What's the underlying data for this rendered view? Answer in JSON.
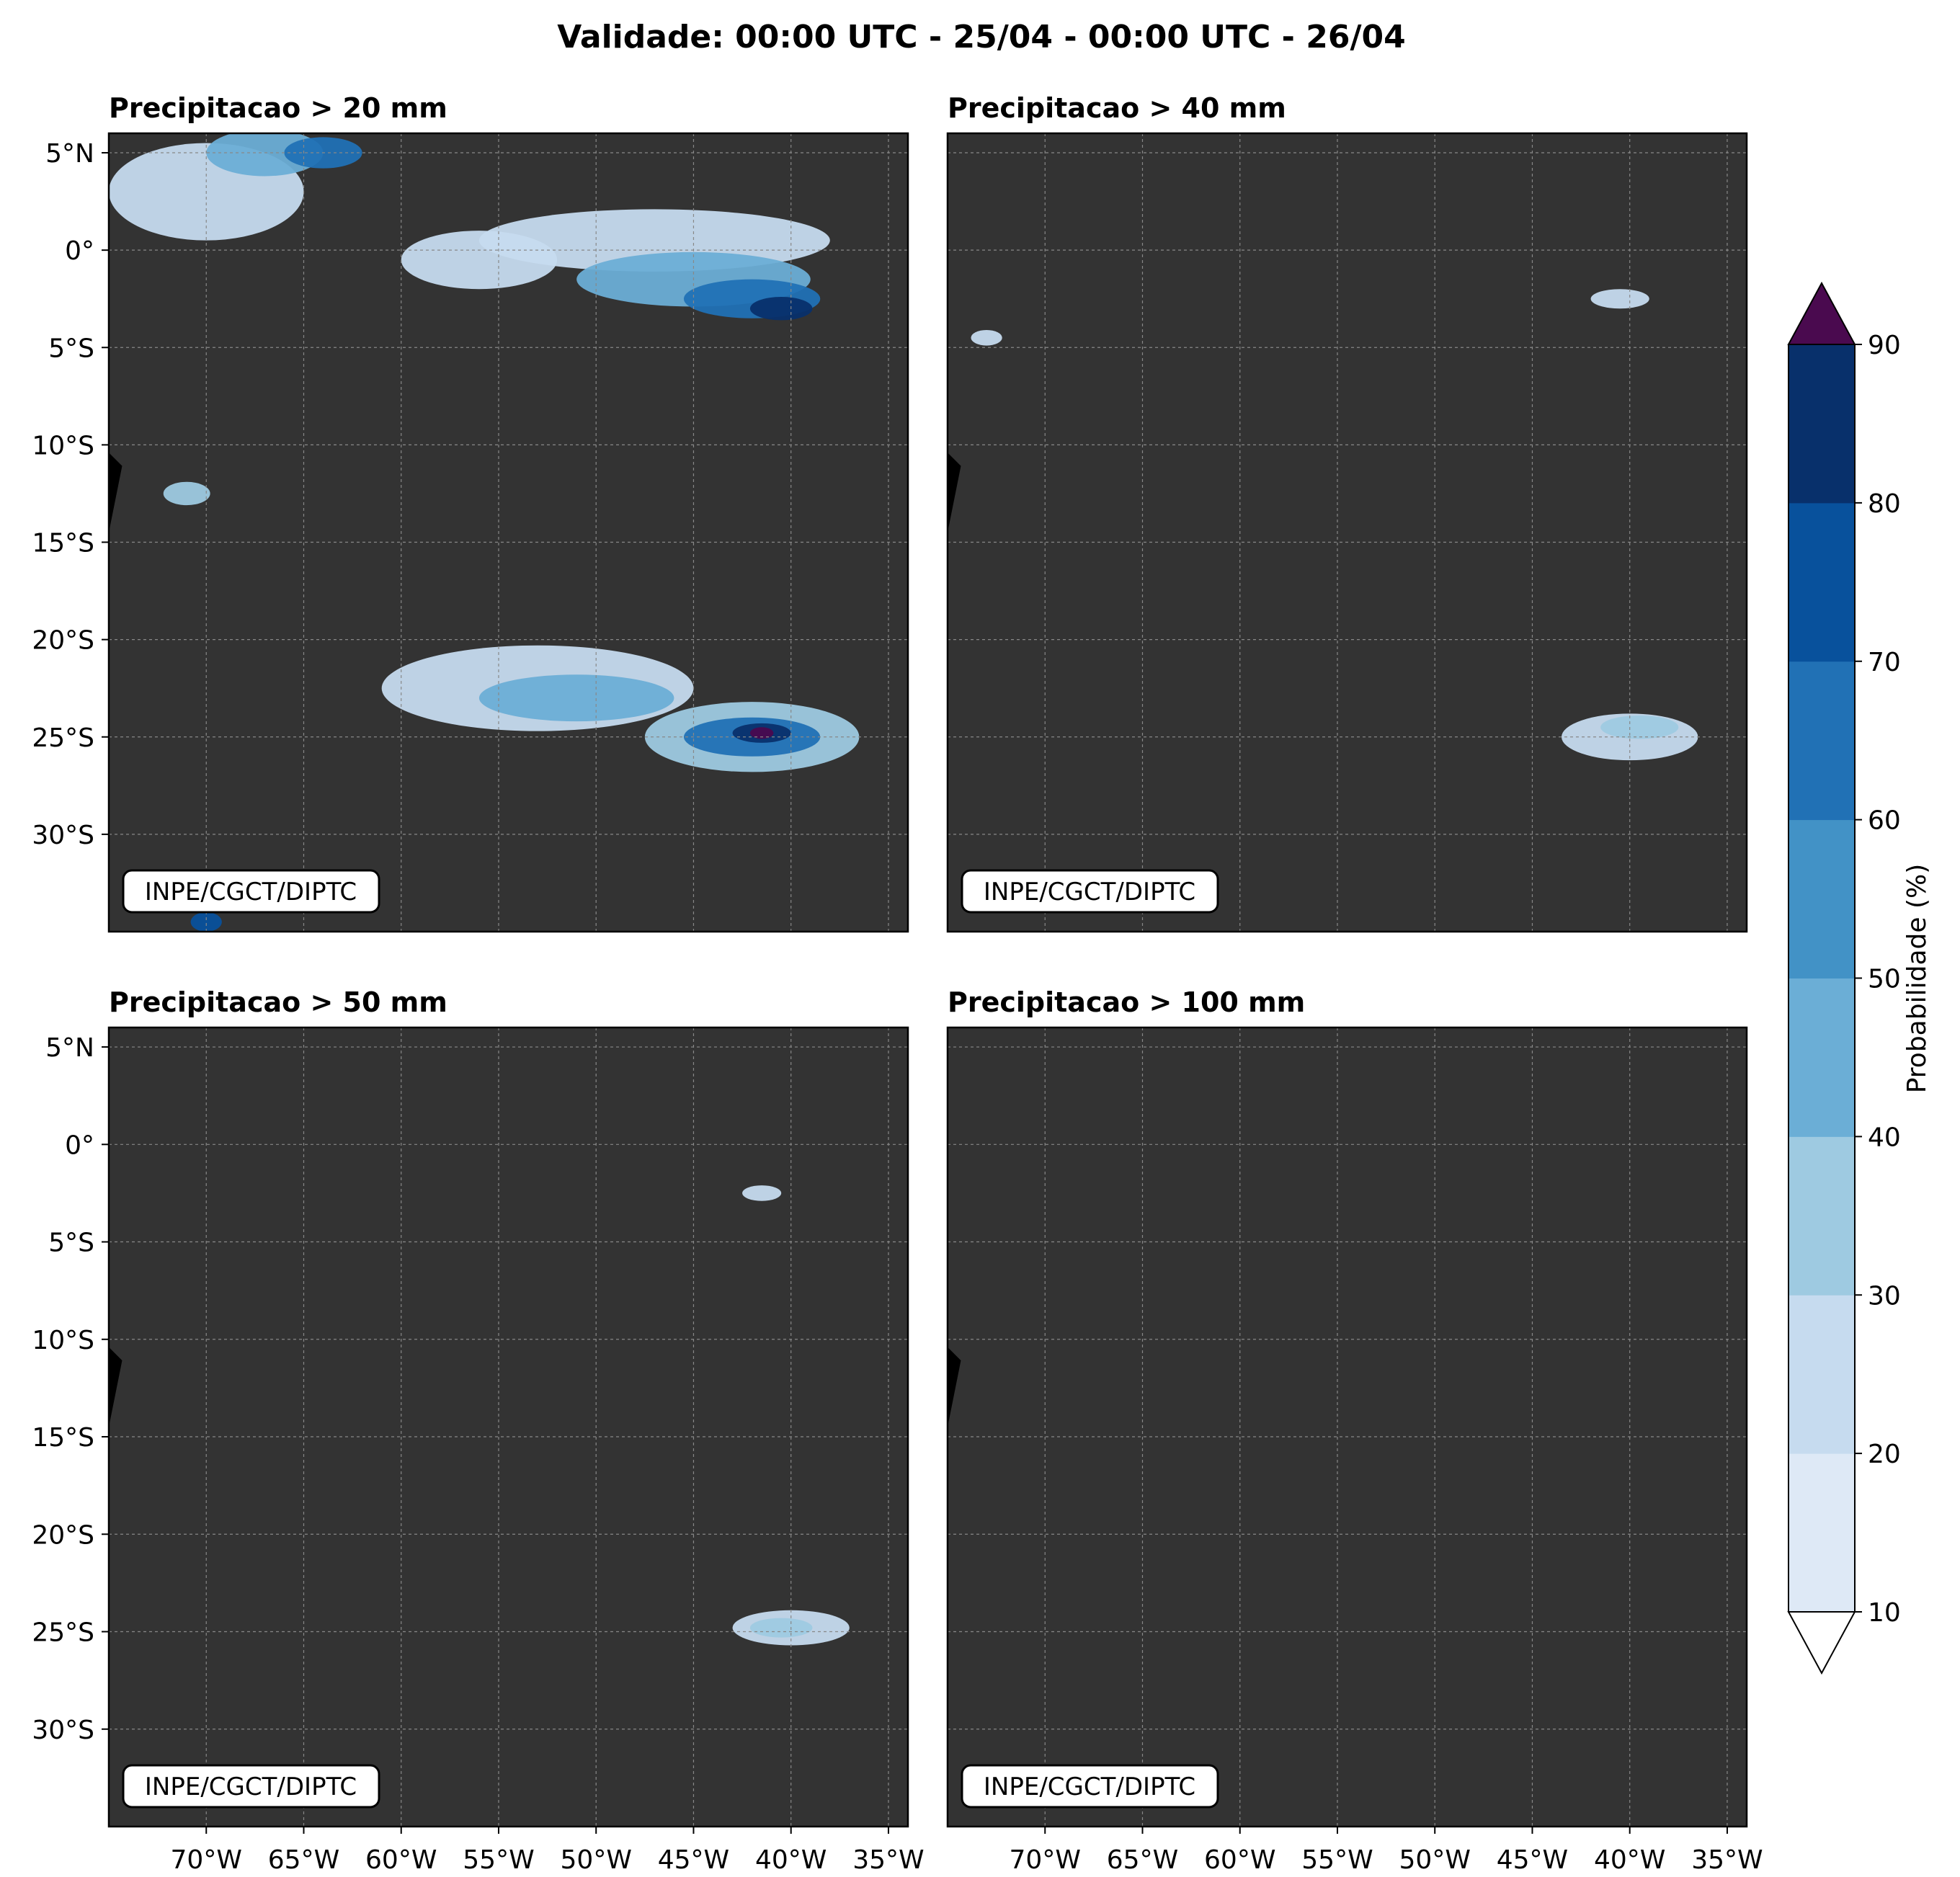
{
  "title": "Validade: 00:00 UTC - 25/04 - 00:00 UTC - 26/04",
  "credit": "INPE/CGCT/DIPTC",
  "panels": [
    {
      "title": "Precipitacao > 20 mm",
      "threshold_mm": 20
    },
    {
      "title": "Precipitacao > 40 mm",
      "threshold_mm": 40
    },
    {
      "title": "Precipitacao > 50 mm",
      "threshold_mm": 50
    },
    {
      "title": "Precipitacao > 100 mm",
      "threshold_mm": 100
    }
  ],
  "lat_ticks": [
    "5°N",
    "0°",
    "5°S",
    "10°S",
    "15°S",
    "20°S",
    "25°S",
    "30°S"
  ],
  "lat_values": [
    5,
    0,
    -5,
    -10,
    -15,
    -20,
    -25,
    -30
  ],
  "lon_ticks": [
    "70°W",
    "65°W",
    "60°W",
    "55°W",
    "50°W",
    "45°W",
    "40°W",
    "35°W"
  ],
  "lon_values": [
    -70,
    -65,
    -60,
    -55,
    -50,
    -45,
    -40,
    -35
  ],
  "extent": {
    "lon": [
      -75,
      -34
    ],
    "lat": [
      -35,
      6
    ]
  },
  "colorbar": {
    "label": "Probabilidade (%)",
    "ticks": [
      "10",
      "20",
      "30",
      "40",
      "50",
      "60",
      "70",
      "80",
      "90"
    ],
    "levels": [
      10,
      20,
      30,
      40,
      50,
      60,
      70,
      80,
      90
    ],
    "colors": [
      "#dee9f6",
      "#c6dbef",
      "#9ecae1",
      "#6baed6",
      "#4292c6",
      "#2171b5",
      "#08519c",
      "#08306b"
    ],
    "over_color": "#4a0a4f",
    "under_color": "#ffffff"
  },
  "precip_areas": [
    [
      {
        "lon": -47,
        "lat": 0.5,
        "rx": 9,
        "ry": 1.6,
        "level": 20
      },
      {
        "lon": -45,
        "lat": -1.5,
        "rx": 6,
        "ry": 1.4,
        "level": 40
      },
      {
        "lon": -42,
        "lat": -2.5,
        "rx": 3.5,
        "ry": 1.0,
        "level": 60
      },
      {
        "lon": -40.5,
        "lat": -3,
        "rx": 1.6,
        "ry": 0.6,
        "level": 80
      },
      {
        "lon": -70,
        "lat": 3,
        "rx": 5,
        "ry": 2.5,
        "level": 20
      },
      {
        "lon": -67,
        "lat": 5,
        "rx": 3,
        "ry": 1.2,
        "level": 40
      },
      {
        "lon": -64,
        "lat": 5,
        "rx": 2,
        "ry": 0.8,
        "level": 60
      },
      {
        "lon": -56,
        "lat": -0.5,
        "rx": 4,
        "ry": 1.5,
        "level": 20
      },
      {
        "lon": -53,
        "lat": -22.5,
        "rx": 8,
        "ry": 2.2,
        "level": 20
      },
      {
        "lon": -51,
        "lat": -23,
        "rx": 5,
        "ry": 1.2,
        "level": 40
      },
      {
        "lon": -42,
        "lat": -25,
        "rx": 5.5,
        "ry": 1.8,
        "level": 30
      },
      {
        "lon": -42,
        "lat": -25,
        "rx": 3.5,
        "ry": 1.0,
        "level": 60
      },
      {
        "lon": -41.5,
        "lat": -24.8,
        "rx": 1.5,
        "ry": 0.5,
        "level": 80
      },
      {
        "lon": -41.5,
        "lat": -24.8,
        "rx": 0.6,
        "ry": 0.3,
        "level": 90
      },
      {
        "lon": -71,
        "lat": -12.5,
        "rx": 1.2,
        "ry": 0.6,
        "level": 30
      },
      {
        "lon": -70,
        "lat": -34.5,
        "rx": 0.8,
        "ry": 0.5,
        "level": 70
      }
    ],
    [
      {
        "lon": -40,
        "lat": -25,
        "rx": 3.5,
        "ry": 1.2,
        "level": 20
      },
      {
        "lon": -39.5,
        "lat": -24.5,
        "rx": 2,
        "ry": 0.6,
        "level": 30
      },
      {
        "lon": -40.5,
        "lat": -2.5,
        "rx": 1.5,
        "ry": 0.5,
        "level": 20
      },
      {
        "lon": -73,
        "lat": -4.5,
        "rx": 0.8,
        "ry": 0.4,
        "level": 20
      }
    ],
    [
      {
        "lon": -40,
        "lat": -24.8,
        "rx": 3,
        "ry": 0.9,
        "level": 20
      },
      {
        "lon": -40.5,
        "lat": -24.8,
        "rx": 1.6,
        "ry": 0.5,
        "level": 30
      },
      {
        "lon": -41.5,
        "lat": -2.5,
        "rx": 1.0,
        "ry": 0.4,
        "level": 20
      }
    ],
    []
  ]
}
